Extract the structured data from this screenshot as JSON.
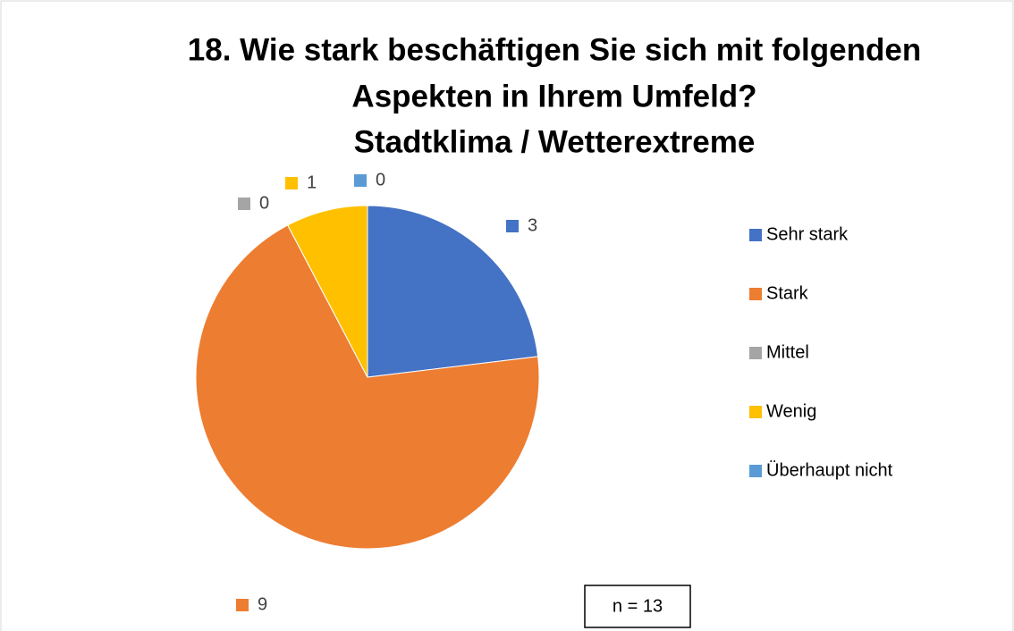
{
  "chart_data": {
    "type": "pie",
    "title": [
      "18. Wie stark beschäftigen Sie sich mit folgenden",
      "Aspekten in Ihrem Umfeld?"
    ],
    "subtitle": "Stadtklima / Wetterextreme",
    "categories": [
      "Sehr stark",
      "Stark",
      "Mittel",
      "Wenig",
      "Überhaupt nicht"
    ],
    "values": [
      3,
      9,
      0,
      1,
      0
    ],
    "colors": [
      "#4472c4",
      "#ed7d31",
      "#a5a5a5",
      "#ffc000",
      "#5b9bd5"
    ],
    "legend": "right",
    "annotation": "n = 13"
  }
}
